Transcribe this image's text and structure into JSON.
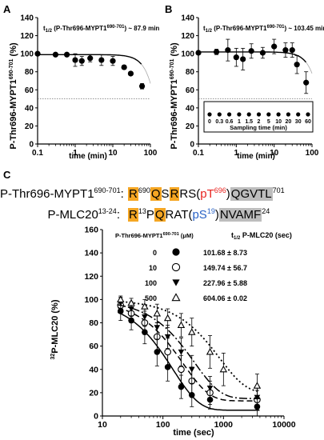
{
  "chart_data": [
    {
      "panel_letter": "A",
      "type": "scatter",
      "annotation_prefix": "t",
      "annotation_sub": "1/2",
      "annotation_sub_label": " (P-Thr696-MYPT1",
      "annotation_sup": "690-701",
      "annotation_suffix": ") ~ 87.9 min",
      "ylabel_main": "P-Thr696-MYPT1",
      "ylabel_sup": "690-701",
      "ylabel_unit": " (%)",
      "xlabel": "time (min)",
      "x_log": true,
      "xlim": [
        0.1,
        100
      ],
      "ylim": [
        0,
        140
      ],
      "x_ticks": [
        "0.1",
        "1",
        "10",
        "100"
      ],
      "y_ticks": [
        "0",
        "20",
        "40",
        "60",
        "80",
        "100",
        "120",
        "140"
      ],
      "reference_line_y": 50,
      "points": [
        {
          "x": 0.1,
          "y": 100,
          "err": 0
        },
        {
          "x": 0.3,
          "y": 99,
          "err": 2
        },
        {
          "x": 0.6,
          "y": 99,
          "err": 2
        },
        {
          "x": 1.0,
          "y": 93,
          "err": 7
        },
        {
          "x": 1.5,
          "y": 92,
          "err": 5
        },
        {
          "x": 2.5,
          "y": 95,
          "err": 4
        },
        {
          "x": 5.0,
          "y": 93,
          "err": 6
        },
        {
          "x": 10.0,
          "y": 92,
          "err": 5
        },
        {
          "x": 20.0,
          "y": 85,
          "err": 2
        },
        {
          "x": 30.0,
          "y": 78,
          "err": 2
        },
        {
          "x": 60.0,
          "y": 64,
          "err": 3
        }
      ],
      "fit_t_half": 87.9
    },
    {
      "panel_letter": "B",
      "type": "scatter",
      "annotation_prefix": "t",
      "annotation_sub": "1/2",
      "annotation_sub_label": " (P-Thr696-MYPT1",
      "annotation_sup": "690-701",
      "annotation_suffix": ") ~ 103.45 min",
      "ylabel_main": "P-Thr696-MYPT1",
      "ylabel_sup": "690-701",
      "ylabel_unit": " (%)",
      "xlabel": "time (min)",
      "x_log": true,
      "xlim": [
        0.1,
        100
      ],
      "ylim": [
        0,
        140
      ],
      "x_ticks": [
        "0.1",
        "1",
        "10",
        "100"
      ],
      "y_ticks": [
        "0",
        "20",
        "40",
        "60",
        "80",
        "100",
        "120",
        "140"
      ],
      "reference_line_y": 50,
      "points": [
        {
          "x": 0.1,
          "y": 101,
          "err": 2
        },
        {
          "x": 0.3,
          "y": 102,
          "err": 3
        },
        {
          "x": 0.6,
          "y": 104,
          "err": 12
        },
        {
          "x": 1.0,
          "y": 96,
          "err": 10
        },
        {
          "x": 1.5,
          "y": 94,
          "err": 12
        },
        {
          "x": 2.5,
          "y": 103,
          "err": 8
        },
        {
          "x": 5.0,
          "y": 101,
          "err": 6
        },
        {
          "x": 10.0,
          "y": 108,
          "err": 8
        },
        {
          "x": 20.0,
          "y": 104,
          "err": 8
        },
        {
          "x": 30.0,
          "y": 104,
          "err": 8
        },
        {
          "x": 40.0,
          "y": 88,
          "err": 10
        },
        {
          "x": 70.0,
          "y": 68,
          "err": 12
        }
      ],
      "fit_t_half": 103.45,
      "inset": {
        "title": "Sampling time (min)",
        "labels": [
          "0",
          "0.3",
          "0.6",
          "1",
          "1.5",
          "2",
          "5",
          "10",
          "20",
          "30",
          "60"
        ]
      }
    },
    {
      "panel_letter": "C",
      "type": "scatter",
      "ylabel_sup": "32",
      "ylabel_main": "P-MLC20 (%)",
      "xlabel": "time (sec)",
      "x_log": true,
      "xlim": [
        10,
        10000
      ],
      "ylim": [
        0,
        160
      ],
      "x_ticks": [
        "10",
        "100",
        "1000",
        "10000"
      ],
      "y_ticks": [
        "0",
        "20",
        "40",
        "60",
        "80",
        "100",
        "120",
        "140",
        "160"
      ],
      "legend_col1_main": "P-Thr696-MYPT1",
      "legend_col1_sup": "690-701",
      "legend_col1_unit": " (μM)",
      "legend_col2_prefix": "t",
      "legend_col2_sub": "1/2",
      "legend_col2_rest": " P-MLC20 (sec)",
      "series": [
        {
          "name": "0",
          "symbol": "filled-circle",
          "t_half": "101.68 ± 8.73",
          "dash": "",
          "t_half_num": 101.68,
          "plateau": 5,
          "points": [
            {
              "x": 20,
              "y": 90,
              "err": 8
            },
            {
              "x": 30,
              "y": 82,
              "err": 8
            },
            {
              "x": 50,
              "y": 72,
              "err": 10
            },
            {
              "x": 80,
              "y": 55,
              "err": 12
            },
            {
              "x": 120,
              "y": 42,
              "err": 12
            },
            {
              "x": 200,
              "y": 25,
              "err": 10
            },
            {
              "x": 300,
              "y": 18,
              "err": 10
            },
            {
              "x": 600,
              "y": 14,
              "err": 8
            },
            {
              "x": 3600,
              "y": 8,
              "err": 8
            }
          ]
        },
        {
          "name": "10",
          "symbol": "open-circle",
          "t_half": "149.74 ± 56.7",
          "dash": "7,4",
          "t_half_num": 149.74,
          "plateau": 13,
          "points": [
            {
              "x": 20,
              "y": 95,
              "err": 6
            },
            {
              "x": 30,
              "y": 88,
              "err": 8
            },
            {
              "x": 50,
              "y": 80,
              "err": 10
            },
            {
              "x": 80,
              "y": 68,
              "err": 12
            },
            {
              "x": 120,
              "y": 55,
              "err": 12
            },
            {
              "x": 200,
              "y": 40,
              "err": 12
            },
            {
              "x": 300,
              "y": 30,
              "err": 12
            },
            {
              "x": 600,
              "y": 20,
              "err": 10
            },
            {
              "x": 3600,
              "y": 14,
              "err": 8
            }
          ]
        },
        {
          "name": "100",
          "symbol": "filled-triangle-down",
          "t_half": "227.96 ± 5.88",
          "dash": "10,3,2,3",
          "t_half_num": 227.96,
          "plateau": 15,
          "points": [
            {
              "x": 20,
              "y": 97,
              "err": 5
            },
            {
              "x": 30,
              "y": 92,
              "err": 6
            },
            {
              "x": 50,
              "y": 85,
              "err": 8
            },
            {
              "x": 80,
              "y": 76,
              "err": 10
            },
            {
              "x": 120,
              "y": 68,
              "err": 10
            },
            {
              "x": 200,
              "y": 55,
              "err": 12
            },
            {
              "x": 300,
              "y": 40,
              "err": 12
            },
            {
              "x": 600,
              "y": 24,
              "err": 10
            },
            {
              "x": 3600,
              "y": 16,
              "err": 8
            }
          ]
        },
        {
          "name": "500",
          "symbol": "open-triangle-up",
          "t_half": "604.06 ± 0.02",
          "dash": "2,3",
          "t_half_num": 604.06,
          "plateau": 20,
          "points": [
            {
              "x": 20,
              "y": 100,
              "err": 3
            },
            {
              "x": 30,
              "y": 97,
              "err": 4
            },
            {
              "x": 50,
              "y": 94,
              "err": 6
            },
            {
              "x": 80,
              "y": 88,
              "err": 8
            },
            {
              "x": 120,
              "y": 84,
              "err": 8
            },
            {
              "x": 200,
              "y": 78,
              "err": 10
            },
            {
              "x": 300,
              "y": 72,
              "err": 12
            },
            {
              "x": 600,
              "y": 55,
              "err": 14
            },
            {
              "x": 1000,
              "y": 40,
              "err": 14
            },
            {
              "x": 3600,
              "y": 26,
              "err": 10
            }
          ]
        }
      ]
    }
  ],
  "sequences": {
    "row1": {
      "label_main": "P-Thr696-MYPT1",
      "label_sup": "690-701",
      "label_colon": ":",
      "p1": "R",
      "p1_sup": "690",
      "p2": "Q",
      "p3": "S",
      "p4": "R",
      "p5": "RS(",
      "p6": "pT",
      "p6_sup": "696",
      "p7": ")",
      "p8": "QGVTL",
      "p9_sup": "701"
    },
    "row2": {
      "label_main": "P-MLC20",
      "label_sup": "13-24",
      "label_colon": ":",
      "p1": "R",
      "p1_sup": "13",
      "p2": "P",
      "p3": "Q",
      "p4": "R",
      "p5": "AT(",
      "p6": "pS",
      "p6_sup": "19",
      "p7": ")",
      "p8": "NVAMF",
      "p9_sup": "24"
    }
  }
}
